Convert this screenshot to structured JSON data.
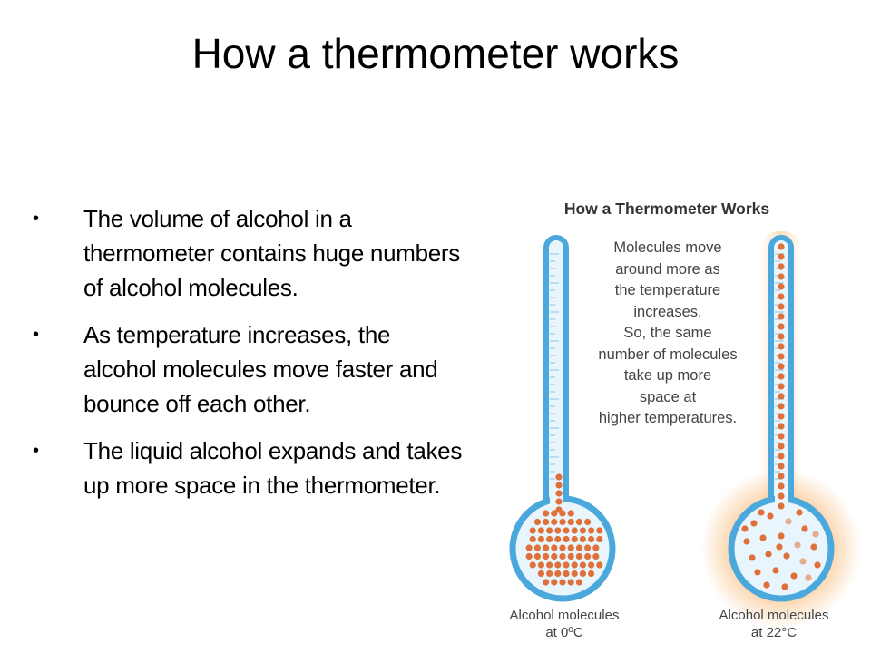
{
  "slide": {
    "title": "How a thermometer works",
    "bullets": [
      "The volume of alcohol in a thermometer contains huge numbers of alcohol molecules.",
      "As temperature increases, the alcohol molecules move faster and bounce off each other.",
      "The liquid alcohol expands and takes up more space in the thermometer."
    ]
  },
  "figure": {
    "title": "How a Thermometer Works",
    "note_lines": [
      "Molecules move",
      "around more as",
      "the temperature",
      "increases.",
      "So, the same",
      "number of molecules",
      "take up more",
      "space at",
      "higher temperatures."
    ],
    "left_caption": [
      "Alcohol molecules",
      "at 0ºC"
    ],
    "right_caption": [
      "Alcohol molecules",
      "at 22°C"
    ],
    "colors": {
      "tube_outline": "#4aa8dc",
      "tube_fill": "#e8f5fc",
      "molecule": "#e0703a",
      "glow": "#f7a34a"
    }
  }
}
